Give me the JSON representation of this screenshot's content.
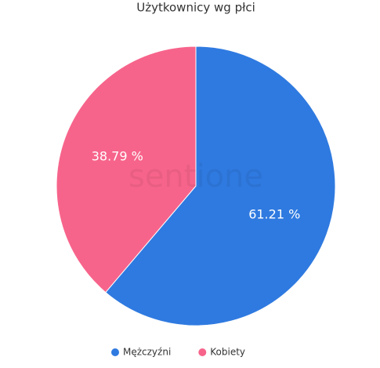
{
  "chart_data": {
    "type": "pie",
    "title": "Użytkownicy wg płci",
    "categories": [
      "Mężczyźni",
      "Kobiety"
    ],
    "values": [
      61.21,
      38.79
    ],
    "value_labels": [
      "61.21 %",
      "38.79 %"
    ],
    "colors": [
      "#2f7ae0",
      "#f7648b"
    ],
    "legend": "bottom",
    "watermark": "sentione"
  }
}
